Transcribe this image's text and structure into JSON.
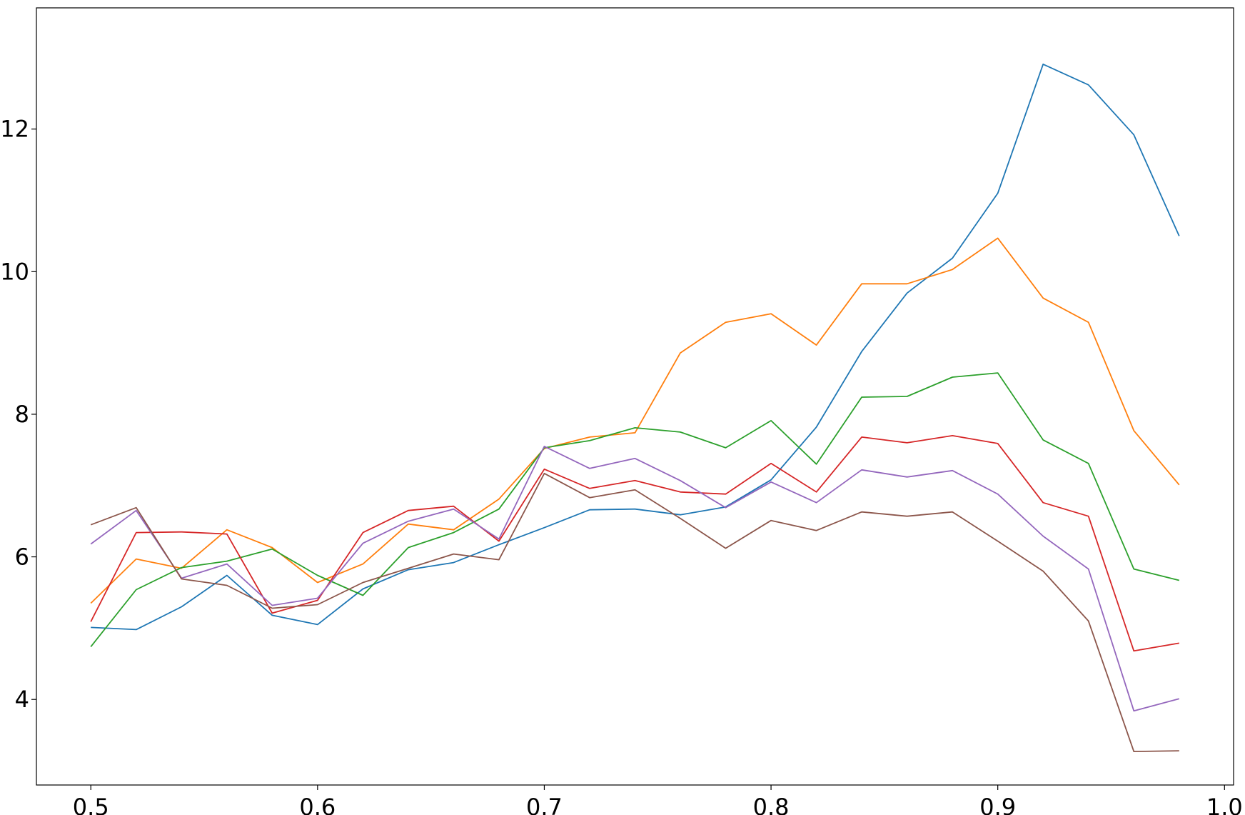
{
  "chart_data": {
    "type": "line",
    "title": "",
    "xlabel": "",
    "ylabel": "",
    "xlim": [
      0.476,
      1.004
    ],
    "ylim": [
      2.8,
      13.7
    ],
    "grid": false,
    "legend": "none",
    "x": [
      0.5,
      0.52,
      0.54,
      0.56,
      0.58,
      0.6,
      0.62,
      0.64,
      0.66,
      0.68,
      0.7,
      0.72,
      0.74,
      0.76,
      0.78,
      0.8,
      0.82,
      0.84,
      0.86,
      0.88,
      0.9,
      0.92,
      0.94,
      0.96,
      0.98
    ],
    "xticks": [
      0.5,
      0.6,
      0.7,
      0.8,
      0.9,
      1.0
    ],
    "xtick_labels": [
      "0.5",
      "0.6",
      "0.7",
      "0.8",
      "0.9",
      "1.0"
    ],
    "yticks": [
      4,
      6,
      8,
      10,
      12
    ],
    "ytick_labels": [
      "4",
      "6",
      "8",
      "10",
      "12"
    ],
    "series": [
      {
        "color": "#1f77b4",
        "values": [
          5.01,
          4.98,
          5.3,
          5.74,
          5.18,
          5.05,
          5.55,
          5.82,
          5.92,
          6.17,
          6.41,
          6.66,
          6.67,
          6.59,
          6.7,
          7.08,
          7.82,
          8.88,
          9.7,
          10.19,
          11.1,
          12.91,
          12.62,
          11.92,
          10.5
        ]
      },
      {
        "color": "#ff7f0e",
        "values": [
          5.35,
          5.97,
          5.84,
          6.38,
          6.13,
          5.64,
          5.9,
          6.46,
          6.38,
          6.81,
          7.52,
          7.68,
          7.74,
          8.86,
          9.29,
          9.41,
          8.97,
          9.83,
          9.83,
          10.03,
          10.47,
          9.63,
          9.29,
          7.77,
          7.01
        ]
      },
      {
        "color": "#2ca02c",
        "values": [
          4.74,
          5.54,
          5.85,
          5.94,
          6.11,
          5.74,
          5.46,
          6.13,
          6.34,
          6.67,
          7.53,
          7.63,
          7.81,
          7.75,
          7.53,
          7.91,
          7.3,
          8.24,
          8.25,
          8.52,
          8.58,
          7.64,
          7.31,
          5.83,
          5.67
        ]
      },
      {
        "color": "#d62728",
        "values": [
          5.09,
          6.34,
          6.35,
          6.32,
          5.21,
          5.39,
          6.34,
          6.65,
          6.71,
          6.22,
          7.23,
          6.96,
          7.07,
          6.91,
          6.88,
          7.31,
          6.91,
          7.68,
          7.6,
          7.7,
          7.59,
          6.76,
          6.57,
          4.68,
          4.79
        ]
      },
      {
        "color": "#9467bd",
        "values": [
          6.18,
          6.65,
          5.7,
          5.9,
          5.32,
          5.42,
          6.19,
          6.5,
          6.67,
          6.25,
          7.55,
          7.24,
          7.38,
          7.07,
          6.69,
          7.05,
          6.76,
          7.22,
          7.12,
          7.21,
          6.88,
          6.29,
          5.83,
          3.84,
          4.01
        ]
      },
      {
        "color": "#8c564b",
        "values": [
          6.45,
          6.69,
          5.69,
          5.6,
          5.28,
          5.33,
          5.64,
          5.84,
          6.04,
          5.96,
          7.17,
          6.83,
          6.94,
          6.54,
          6.12,
          6.51,
          6.37,
          6.63,
          6.57,
          6.63,
          6.22,
          5.8,
          5.1,
          3.27,
          3.28
        ]
      }
    ]
  }
}
